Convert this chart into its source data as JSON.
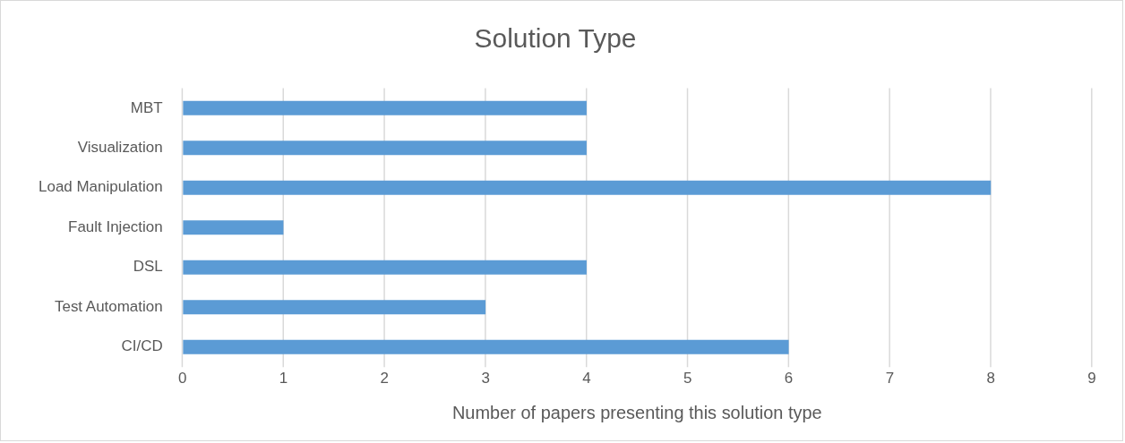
{
  "chart_data": {
    "type": "bar",
    "orientation": "horizontal",
    "title": "Solution Type",
    "xlabel": "Number of papers presenting this solution type",
    "categories": [
      "MBT",
      "Visualization",
      "Load Manipulation",
      "Fault Injection",
      "DSL",
      "Test Automation",
      "CI/CD"
    ],
    "values": [
      4,
      4,
      8,
      1,
      4,
      3,
      6
    ],
    "color": "#5b9bd5",
    "xlim": [
      0,
      9
    ],
    "xticks": [
      0,
      1,
      2,
      3,
      4,
      5,
      6,
      7,
      8,
      9
    ],
    "grid": "x",
    "legend": false
  }
}
